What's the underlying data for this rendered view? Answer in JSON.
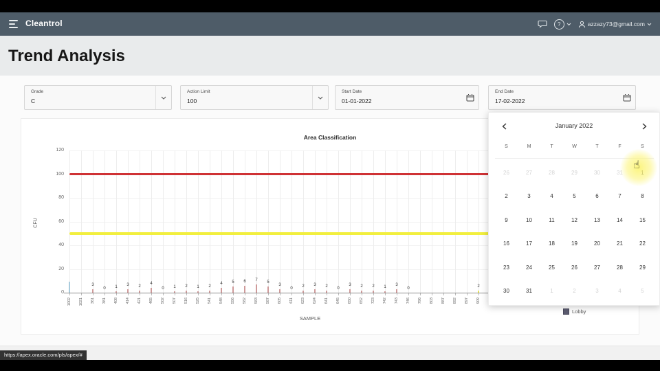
{
  "header": {
    "app_title": "Cleantrol",
    "user_email": "azzazy73@gmail.com"
  },
  "page": {
    "title": "Trend Analysis"
  },
  "filters": {
    "grade": {
      "label": "Grade",
      "value": "C"
    },
    "action_limit": {
      "label": "Action Limit",
      "value": "100"
    },
    "start_date": {
      "label": "Start Date",
      "value": "01-01-2022"
    },
    "end_date": {
      "label": "End Date",
      "value": "17-02-2022"
    }
  },
  "chart_data": {
    "type": "bar",
    "title": "Area Classification",
    "xlabel": "SAMPLE",
    "ylabel": "CFU",
    "ylim": [
      0,
      120
    ],
    "yticks": [
      0,
      20,
      40,
      60,
      80,
      100,
      120
    ],
    "grid": true,
    "legend_position": "bottom-right",
    "series_name": "Lobby",
    "limit_lines": [
      {
        "value": 100,
        "color": "#cf3235",
        "thickness": 3
      },
      {
        "value": 50,
        "color": "#f2ef3e",
        "thickness": 4
      }
    ],
    "categories": [
      "1002",
      "1021",
      "361",
      "381",
      "408",
      "414",
      "421",
      "465",
      "502",
      "507",
      "516",
      "525",
      "541",
      "548",
      "556",
      "582",
      "583",
      "587",
      "605",
      "611",
      "623",
      "624",
      "641",
      "645",
      "650",
      "652",
      "723",
      "742",
      "743",
      "746",
      "796",
      "803",
      "887",
      "892",
      "897",
      "909",
      "914"
    ],
    "values": [
      9,
      null,
      3,
      0,
      1,
      3,
      2,
      4,
      0,
      1,
      2,
      1,
      2,
      4,
      5,
      6,
      7,
      5,
      3,
      0,
      2,
      3,
      2,
      0,
      3,
      2,
      2,
      1,
      3,
      0,
      null,
      null,
      null,
      null,
      null,
      2,
      null
    ],
    "label_hidden_indexes": [
      0
    ],
    "point_colors": {
      "0": "#a9cbdd",
      "35": "#e8e45a"
    },
    "bar_color_default": "#cf9a9a"
  },
  "calendar": {
    "title": "January 2022",
    "day_headers": [
      "S",
      "M",
      "T",
      "W",
      "T",
      "F",
      "S"
    ],
    "weeks": [
      [
        {
          "d": "26",
          "muted": true
        },
        {
          "d": "27",
          "muted": true
        },
        {
          "d": "28",
          "muted": true
        },
        {
          "d": "29",
          "muted": true
        },
        {
          "d": "30",
          "muted": true
        },
        {
          "d": "31",
          "muted": true
        },
        {
          "d": "1",
          "muted": false
        }
      ],
      [
        {
          "d": "2",
          "muted": false
        },
        {
          "d": "3",
          "muted": false
        },
        {
          "d": "4",
          "muted": false
        },
        {
          "d": "5",
          "muted": false
        },
        {
          "d": "6",
          "muted": false
        },
        {
          "d": "7",
          "muted": false
        },
        {
          "d": "8",
          "muted": false
        }
      ],
      [
        {
          "d": "9",
          "muted": false
        },
        {
          "d": "10",
          "muted": false
        },
        {
          "d": "11",
          "muted": false
        },
        {
          "d": "12",
          "muted": false
        },
        {
          "d": "13",
          "muted": false
        },
        {
          "d": "14",
          "muted": false
        },
        {
          "d": "15",
          "muted": false
        }
      ],
      [
        {
          "d": "16",
          "muted": false
        },
        {
          "d": "17",
          "muted": false
        },
        {
          "d": "18",
          "muted": false
        },
        {
          "d": "19",
          "muted": false
        },
        {
          "d": "20",
          "muted": false
        },
        {
          "d": "21",
          "muted": false
        },
        {
          "d": "22",
          "muted": false
        }
      ],
      [
        {
          "d": "23",
          "muted": false
        },
        {
          "d": "24",
          "muted": false
        },
        {
          "d": "25",
          "muted": false
        },
        {
          "d": "26",
          "muted": false
        },
        {
          "d": "27",
          "muted": false
        },
        {
          "d": "28",
          "muted": false
        },
        {
          "d": "29",
          "muted": false
        }
      ],
      [
        {
          "d": "30",
          "muted": false
        },
        {
          "d": "31",
          "muted": false
        },
        {
          "d": "1",
          "muted": true
        },
        {
          "d": "2",
          "muted": true
        },
        {
          "d": "3",
          "muted": true
        },
        {
          "d": "4",
          "muted": true
        },
        {
          "d": "5",
          "muted": true
        }
      ]
    ]
  },
  "status_tooltip": "https://apex.oracle.com/pls/apex/#",
  "icons": {
    "cursor_pointer": "☝"
  },
  "colors": {
    "appbar": "#4e5c68",
    "titlebar": "#e9ebec",
    "action_line": "#cf3235",
    "alert_line": "#f2ef3e",
    "legend_swatch": "#5c5c70",
    "cursor_glow": "#fcf478"
  }
}
